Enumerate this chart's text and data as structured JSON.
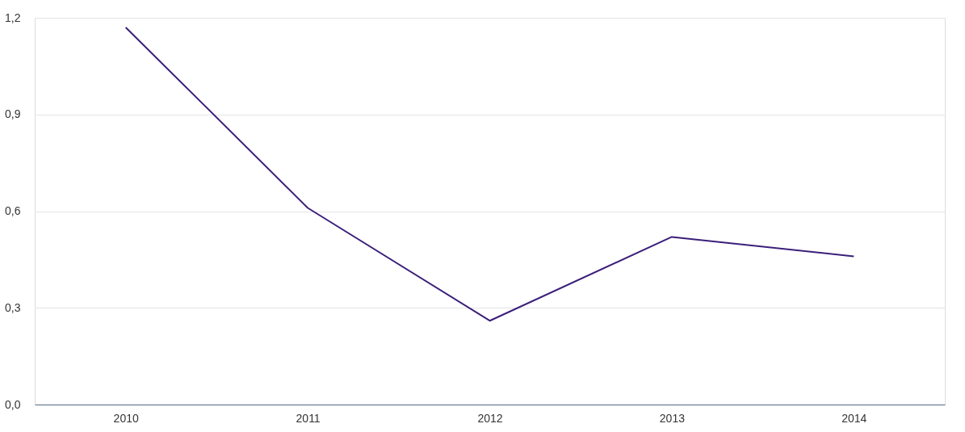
{
  "chart_data": {
    "type": "line",
    "categories": [
      "2010",
      "2011",
      "2012",
      "2013",
      "2014"
    ],
    "series": [
      {
        "color": "#3b1f7a",
        "values": [
          1.17,
          0.61,
          0.26,
          0.52,
          0.46
        ]
      }
    ],
    "ylim": [
      0,
      1.2
    ],
    "yticks": [
      {
        "value": 0,
        "label": "0,0"
      },
      {
        "value": 0.3,
        "label": "0,3"
      },
      {
        "value": 0.6,
        "label": "0,6"
      },
      {
        "value": 0.9,
        "label": "0,9"
      },
      {
        "value": 1.2,
        "label": "1,2"
      }
    ],
    "grid": "y",
    "legend": false,
    "marker": "none",
    "line_style": "solid"
  }
}
